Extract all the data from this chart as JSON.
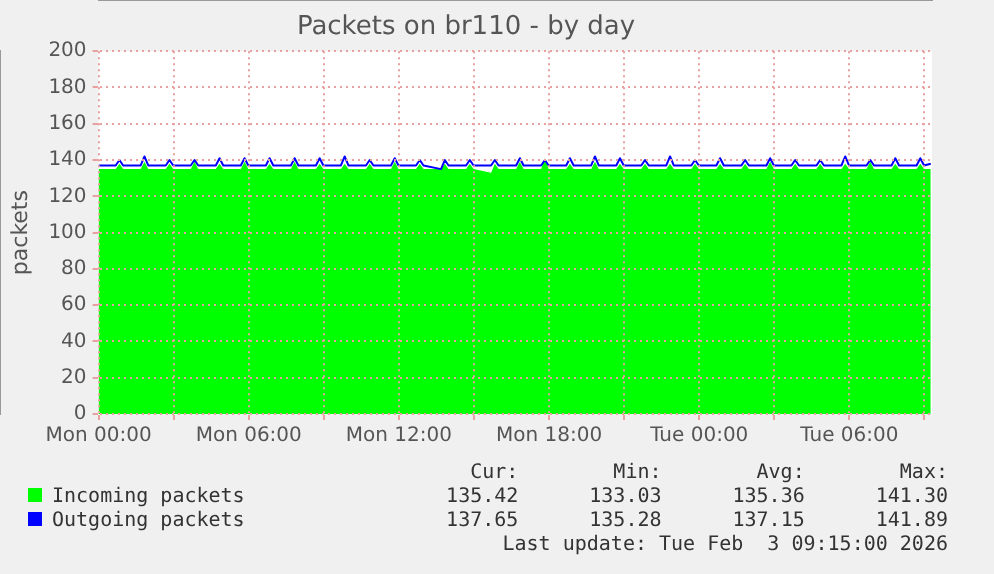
{
  "chart_data": {
    "type": "area",
    "title": "Packets on br110 - by day",
    "ylabel": "packets",
    "x": [
      "2026-02-02T00:00",
      "2026-02-02T00:41",
      "2026-02-02T00:50",
      "2026-02-02T00:59",
      "2026-02-02T01:41",
      "2026-02-02T01:50",
      "2026-02-02T01:59",
      "2026-02-02T02:41",
      "2026-02-02T02:50",
      "2026-02-02T02:59",
      "2026-02-02T03:41",
      "2026-02-02T03:50",
      "2026-02-02T03:59",
      "2026-02-02T04:41",
      "2026-02-02T04:50",
      "2026-02-02T04:59",
      "2026-02-02T05:41",
      "2026-02-02T05:50",
      "2026-02-02T05:59",
      "2026-02-02T06:41",
      "2026-02-02T06:50",
      "2026-02-02T06:59",
      "2026-02-02T07:41",
      "2026-02-02T07:50",
      "2026-02-02T07:59",
      "2026-02-02T08:41",
      "2026-02-02T08:50",
      "2026-02-02T08:59",
      "2026-02-02T09:41",
      "2026-02-02T09:50",
      "2026-02-02T09:59",
      "2026-02-02T10:41",
      "2026-02-02T10:50",
      "2026-02-02T10:59",
      "2026-02-02T11:41",
      "2026-02-02T11:50",
      "2026-02-02T11:59",
      "2026-02-02T12:41",
      "2026-02-02T12:50",
      "2026-02-02T12:59",
      "2026-02-02T13:41",
      "2026-02-02T13:50",
      "2026-02-02T13:59",
      "2026-02-02T14:41",
      "2026-02-02T14:50",
      "2026-02-02T14:59",
      "2026-02-02T15:41",
      "2026-02-02T15:50",
      "2026-02-02T15:59",
      "2026-02-02T16:41",
      "2026-02-02T16:50",
      "2026-02-02T16:59",
      "2026-02-02T17:41",
      "2026-02-02T17:50",
      "2026-02-02T17:59",
      "2026-02-02T18:41",
      "2026-02-02T18:50",
      "2026-02-02T18:59",
      "2026-02-02T19:41",
      "2026-02-02T19:50",
      "2026-02-02T19:59",
      "2026-02-02T20:41",
      "2026-02-02T20:50",
      "2026-02-02T20:59",
      "2026-02-02T21:41",
      "2026-02-02T21:50",
      "2026-02-02T21:59",
      "2026-02-02T22:41",
      "2026-02-02T22:50",
      "2026-02-02T22:59",
      "2026-02-02T23:41",
      "2026-02-02T23:50",
      "2026-02-02T23:59",
      "2026-02-03T00:41",
      "2026-02-03T00:50",
      "2026-02-03T00:59",
      "2026-02-03T01:41",
      "2026-02-03T01:50",
      "2026-02-03T01:59",
      "2026-02-03T02:41",
      "2026-02-03T02:50",
      "2026-02-03T02:59",
      "2026-02-03T03:41",
      "2026-02-03T03:50",
      "2026-02-03T03:59",
      "2026-02-03T04:41",
      "2026-02-03T04:50",
      "2026-02-03T04:59",
      "2026-02-03T05:41",
      "2026-02-03T05:50",
      "2026-02-03T05:59",
      "2026-02-03T06:41",
      "2026-02-03T06:50",
      "2026-02-03T06:59",
      "2026-02-03T07:41",
      "2026-02-03T07:50",
      "2026-02-03T07:59",
      "2026-02-03T08:41",
      "2026-02-03T08:50",
      "2026-02-03T08:59",
      "2026-02-03T09:15"
    ],
    "series": [
      {
        "name": "Incoming packets",
        "color": "#00ff00",
        "values": [
          135,
          135,
          138,
          135,
          135,
          139,
          135,
          135,
          138,
          135,
          135,
          139,
          135,
          135,
          138,
          135,
          135,
          139,
          135,
          135,
          138,
          135,
          135,
          139,
          135,
          135,
          138,
          135,
          135,
          138,
          135,
          135,
          138,
          135,
          135,
          139,
          135,
          135,
          138,
          135,
          135,
          138,
          135,
          135,
          138,
          135,
          133,
          138,
          135,
          135,
          139,
          135,
          135,
          141,
          135,
          135,
          138,
          135,
          135,
          139,
          135,
          135,
          138,
          135,
          135,
          138,
          135,
          135,
          138,
          135,
          135,
          138,
          135,
          135,
          138,
          135,
          135,
          138,
          135,
          135,
          139,
          135,
          135,
          138,
          135,
          135,
          138,
          135,
          135,
          138,
          135,
          135,
          139,
          135,
          135,
          138,
          135,
          135,
          138,
          135,
          135
        ]
      },
      {
        "name": "Outgoing packets",
        "type": "line",
        "color": "#0000ff",
        "values": [
          137,
          137,
          140,
          137,
          137,
          142,
          137,
          137,
          140,
          137,
          137,
          140,
          137,
          137,
          141,
          137,
          137,
          141,
          137,
          137,
          141,
          137,
          137,
          141,
          137,
          137,
          141,
          137,
          137,
          142,
          137,
          137,
          140,
          137,
          137,
          141,
          137,
          137,
          140,
          137,
          135,
          140,
          137,
          137,
          140,
          137,
          137,
          140,
          137,
          137,
          141,
          137,
          137,
          140,
          137,
          137,
          141,
          137,
          137,
          142,
          137,
          137,
          141,
          137,
          137,
          140,
          137,
          137,
          142,
          137,
          137,
          140,
          137,
          137,
          141,
          137,
          137,
          140,
          137,
          137,
          141,
          137,
          137,
          140,
          137,
          137,
          140,
          137,
          137,
          142,
          137,
          137,
          140,
          137,
          137,
          141,
          137,
          137,
          141,
          137,
          138
        ]
      }
    ],
    "xlim": [
      "2026-02-02T00:00",
      "2026-02-03T09:18"
    ],
    "xticks": [
      {
        "value": "2026-02-02T00:00",
        "label": "Mon 00:00"
      },
      {
        "value": "2026-02-02T03:00",
        "label": null
      },
      {
        "value": "2026-02-02T06:00",
        "label": "Mon 06:00"
      },
      {
        "value": "2026-02-02T09:00",
        "label": null
      },
      {
        "value": "2026-02-02T12:00",
        "label": "Mon 12:00"
      },
      {
        "value": "2026-02-02T15:00",
        "label": null
      },
      {
        "value": "2026-02-02T18:00",
        "label": "Mon 18:00"
      },
      {
        "value": "2026-02-02T21:00",
        "label": null
      },
      {
        "value": "2026-02-03T00:00",
        "label": "Tue 00:00"
      },
      {
        "value": "2026-02-03T03:00",
        "label": null
      },
      {
        "value": "2026-02-03T06:00",
        "label": "Tue 06:00"
      },
      {
        "value": "2026-02-03T09:00",
        "label": null
      }
    ],
    "ylim": [
      0,
      200
    ],
    "yticks": [
      0,
      20,
      40,
      60,
      80,
      100,
      120,
      140,
      160,
      180,
      200
    ],
    "grid": true,
    "legend": "bottom",
    "annotations": [
      "Cur:",
      "Min:",
      "Avg:",
      "Max:",
      "135.42",
      "133.03",
      "135.36",
      "141.30",
      "137.65",
      "135.28",
      "137.15",
      "141.89",
      "Last update: Tue Feb  3 09:15:00 2026"
    ]
  }
}
